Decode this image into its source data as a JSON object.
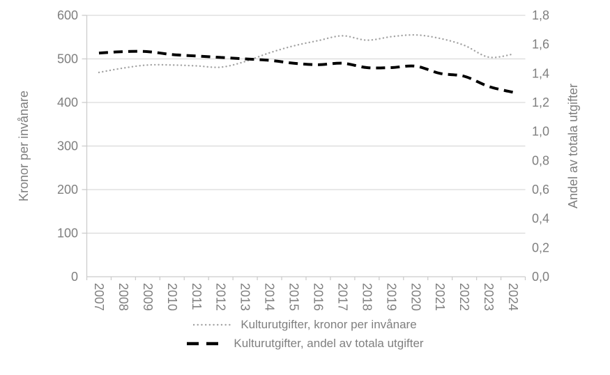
{
  "chart_data": {
    "type": "line",
    "categories": [
      "2007",
      "2008",
      "2009",
      "2010",
      "2011",
      "2012",
      "2013",
      "2014",
      "2015",
      "2016",
      "2017",
      "2018",
      "2019",
      "2020",
      "2021",
      "2022",
      "2023",
      "2024"
    ],
    "series": [
      {
        "name": "Kulturutgifter, kronor per invånare",
        "axis": "left",
        "style": "dotted",
        "values": [
          469,
          479,
          486,
          486,
          484,
          481,
          494,
          514,
          530,
          542,
          553,
          543,
          551,
          555,
          547,
          531,
          504,
          511
        ]
      },
      {
        "name": "Kulturutgifter, andel av totala utgifter",
        "axis": "right",
        "style": "dashed",
        "values": [
          1.54,
          1.55,
          1.55,
          1.53,
          1.52,
          1.51,
          1.5,
          1.49,
          1.47,
          1.46,
          1.47,
          1.44,
          1.44,
          1.45,
          1.4,
          1.38,
          1.31,
          1.27
        ]
      }
    ],
    "left_axis": {
      "title": "Kronor per invånare",
      "min": 0,
      "max": 600,
      "step": 100,
      "tick_labels": [
        "0",
        "100",
        "200",
        "300",
        "400",
        "500",
        "600"
      ]
    },
    "right_axis": {
      "title": "Andel av totala utgifter",
      "min": 0,
      "max": 1.8,
      "step": 0.2,
      "tick_labels": [
        "0,0",
        "0,2",
        "0,4",
        "0,6",
        "0,8",
        "1,0",
        "1,2",
        "1,4",
        "1,6",
        "1,8"
      ]
    },
    "x_axis": {
      "label_rotation_deg": 90
    },
    "legend_position": "bottom",
    "grid": true
  },
  "colors": {
    "dotted_series": "#a3a3a3",
    "dashed_series": "#000000",
    "grid": "#d9d9d9",
    "axis": "#cccccc",
    "tick_text": "#7f7f7f",
    "axis_title_text": "#7f7f7f"
  }
}
